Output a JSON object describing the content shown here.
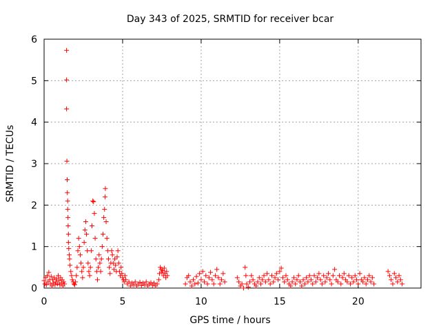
{
  "chart_data": {
    "type": "scatter",
    "title": "Day 343 of 2025, SRMTID for receiver bcar",
    "xlabel": "GPS time / hours",
    "ylabel": "SRMTID / TECUs",
    "xlim": [
      0,
      24
    ],
    "ylim": [
      0,
      6
    ],
    "xticks": [
      0,
      5,
      10,
      15,
      20
    ],
    "yticks": [
      0,
      1,
      2,
      3,
      4,
      5,
      6
    ],
    "grid": true,
    "legend": "none",
    "marker": "+",
    "color": "#ff0000",
    "series": [
      {
        "name": "SRMTID",
        "points": [
          [
            0.0,
            0.18
          ],
          [
            0.05,
            0.1
          ],
          [
            0.1,
            0.25
          ],
          [
            0.15,
            0.08
          ],
          [
            0.2,
            0.3
          ],
          [
            0.25,
            0.15
          ],
          [
            0.3,
            0.38
          ],
          [
            0.35,
            0.2
          ],
          [
            0.4,
            0.1
          ],
          [
            0.45,
            0.28
          ],
          [
            0.5,
            0.05
          ],
          [
            0.55,
            0.2
          ],
          [
            0.6,
            0.12
          ],
          [
            0.65,
            0.25
          ],
          [
            0.7,
            0.08
          ],
          [
            0.75,
            0.15
          ],
          [
            0.8,
            0.22
          ],
          [
            0.85,
            0.1
          ],
          [
            0.9,
            0.3
          ],
          [
            0.95,
            0.18
          ],
          [
            1.0,
            0.08
          ],
          [
            1.05,
            0.25
          ],
          [
            1.1,
            0.12
          ],
          [
            1.15,
            0.2
          ],
          [
            1.2,
            0.05
          ],
          [
            1.25,
            0.15
          ],
          [
            1.3,
            0.1
          ],
          [
            1.43,
            5.73
          ],
          [
            1.43,
            5.02
          ],
          [
            1.43,
            4.32
          ],
          [
            1.45,
            3.06
          ],
          [
            1.47,
            2.61
          ],
          [
            1.48,
            2.3
          ],
          [
            1.5,
            2.1
          ],
          [
            1.5,
            1.9
          ],
          [
            1.52,
            1.7
          ],
          [
            1.53,
            1.5
          ],
          [
            1.55,
            1.3
          ],
          [
            1.55,
            1.1
          ],
          [
            1.57,
            0.95
          ],
          [
            1.6,
            0.8
          ],
          [
            1.62,
            0.7
          ],
          [
            1.65,
            0.55
          ],
          [
            1.7,
            0.4
          ],
          [
            1.75,
            0.3
          ],
          [
            1.8,
            0.2
          ],
          [
            1.85,
            0.15
          ],
          [
            1.9,
            0.1
          ],
          [
            1.95,
            0.08
          ],
          [
            2.0,
            0.15
          ],
          [
            2.05,
            0.3
          ],
          [
            2.1,
            0.5
          ],
          [
            2.15,
            0.9
          ],
          [
            2.2,
            1.2
          ],
          [
            2.25,
            1.0
          ],
          [
            2.3,
            0.8
          ],
          [
            2.35,
            0.6
          ],
          [
            2.4,
            0.4
          ],
          [
            2.45,
            0.25
          ],
          [
            2.5,
            0.5
          ],
          [
            2.55,
            1.1
          ],
          [
            2.6,
            1.4
          ],
          [
            2.65,
            1.6
          ],
          [
            2.7,
            1.3
          ],
          [
            2.75,
            0.9
          ],
          [
            2.8,
            0.6
          ],
          [
            2.85,
            0.4
          ],
          [
            2.9,
            0.3
          ],
          [
            2.95,
            0.5
          ],
          [
            3.0,
            0.9
          ],
          [
            3.05,
            1.5
          ],
          [
            3.1,
            2.1
          ],
          [
            3.15,
            2.08
          ],
          [
            3.2,
            1.8
          ],
          [
            3.25,
            1.2
          ],
          [
            3.3,
            0.7
          ],
          [
            3.35,
            0.4
          ],
          [
            3.4,
            0.2
          ],
          [
            3.45,
            0.5
          ],
          [
            3.5,
            0.8
          ],
          [
            3.55,
            0.6
          ],
          [
            3.6,
            0.4
          ],
          [
            3.65,
            0.7
          ],
          [
            3.7,
            1.0
          ],
          [
            3.75,
            1.3
          ],
          [
            3.8,
            1.7
          ],
          [
            3.85,
            1.9
          ],
          [
            3.88,
            2.2
          ],
          [
            3.9,
            2.4
          ],
          [
            3.95,
            1.6
          ],
          [
            4.0,
            1.2
          ],
          [
            4.05,
            0.9
          ],
          [
            4.1,
            0.7
          ],
          [
            4.15,
            0.5
          ],
          [
            4.2,
            0.35
          ],
          [
            4.25,
            0.6
          ],
          [
            4.3,
            0.9
          ],
          [
            4.35,
            0.8
          ],
          [
            4.4,
            0.6
          ],
          [
            4.45,
            0.45
          ],
          [
            4.5,
            0.7
          ],
          [
            4.55,
            0.55
          ],
          [
            4.6,
            0.4
          ],
          [
            4.65,
            0.75
          ],
          [
            4.7,
            0.9
          ],
          [
            4.75,
            0.6
          ],
          [
            4.8,
            0.4
          ],
          [
            4.85,
            0.3
          ],
          [
            4.9,
            0.5
          ],
          [
            4.95,
            0.35
          ],
          [
            5.0,
            0.25
          ],
          [
            5.05,
            0.2
          ],
          [
            5.1,
            0.15
          ],
          [
            5.15,
            0.3
          ],
          [
            5.2,
            0.2
          ],
          [
            5.3,
            0.1
          ],
          [
            5.4,
            0.15
          ],
          [
            5.5,
            0.05
          ],
          [
            5.6,
            0.12
          ],
          [
            5.7,
            0.08
          ],
          [
            5.8,
            0.15
          ],
          [
            5.9,
            0.05
          ],
          [
            6.0,
            0.1
          ],
          [
            6.1,
            0.14
          ],
          [
            6.2,
            0.06
          ],
          [
            6.3,
            0.12
          ],
          [
            6.4,
            0.08
          ],
          [
            6.5,
            0.15
          ],
          [
            6.6,
            0.05
          ],
          [
            6.7,
            0.1
          ],
          [
            6.8,
            0.13
          ],
          [
            6.9,
            0.07
          ],
          [
            7.0,
            0.12
          ],
          [
            7.1,
            0.05
          ],
          [
            7.2,
            0.1
          ],
          [
            7.3,
            0.2
          ],
          [
            7.35,
            0.35
          ],
          [
            7.4,
            0.5
          ],
          [
            7.45,
            0.45
          ],
          [
            7.5,
            0.38
          ],
          [
            7.55,
            0.42
          ],
          [
            7.6,
            0.3
          ],
          [
            7.65,
            0.48
          ],
          [
            7.7,
            0.35
          ],
          [
            7.75,
            0.25
          ],
          [
            7.8,
            0.4
          ],
          [
            7.85,
            0.3
          ],
          [
            9.0,
            0.1
          ],
          [
            9.1,
            0.25
          ],
          [
            9.2,
            0.3
          ],
          [
            9.3,
            0.15
          ],
          [
            9.4,
            0.05
          ],
          [
            9.5,
            0.2
          ],
          [
            9.6,
            0.1
          ],
          [
            9.7,
            0.28
          ],
          [
            9.8,
            0.12
          ],
          [
            9.9,
            0.35
          ],
          [
            10.0,
            0.2
          ],
          [
            10.1,
            0.4
          ],
          [
            10.2,
            0.15
          ],
          [
            10.3,
            0.3
          ],
          [
            10.4,
            0.1
          ],
          [
            10.5,
            0.25
          ],
          [
            10.6,
            0.38
          ],
          [
            10.7,
            0.2
          ],
          [
            10.8,
            0.1
          ],
          [
            10.9,
            0.3
          ],
          [
            11.0,
            0.45
          ],
          [
            11.1,
            0.25
          ],
          [
            11.2,
            0.1
          ],
          [
            11.3,
            0.2
          ],
          [
            11.4,
            0.35
          ],
          [
            11.5,
            0.15
          ],
          [
            12.3,
            0.25
          ],
          [
            12.4,
            0.15
          ],
          [
            12.5,
            0.05
          ],
          [
            12.6,
            0.1
          ],
          [
            12.7,
            0.0
          ],
          [
            12.8,
            0.5
          ],
          [
            12.85,
            0.3
          ],
          [
            12.9,
            0.1
          ],
          [
            13.0,
            0.02
          ],
          [
            13.1,
            0.15
          ],
          [
            13.2,
            0.3
          ],
          [
            13.3,
            0.2
          ],
          [
            13.4,
            0.1
          ],
          [
            13.5,
            0.05
          ],
          [
            13.6,
            0.15
          ],
          [
            13.7,
            0.25
          ],
          [
            13.8,
            0.1
          ],
          [
            13.9,
            0.2
          ],
          [
            14.0,
            0.3
          ],
          [
            14.1,
            0.15
          ],
          [
            14.2,
            0.35
          ],
          [
            14.3,
            0.2
          ],
          [
            14.4,
            0.1
          ],
          [
            14.5,
            0.3
          ],
          [
            14.6,
            0.15
          ],
          [
            14.7,
            0.25
          ],
          [
            14.8,
            0.35
          ],
          [
            14.9,
            0.2
          ],
          [
            15.0,
            0.4
          ],
          [
            15.1,
            0.48
          ],
          [
            15.2,
            0.25
          ],
          [
            15.3,
            0.15
          ],
          [
            15.4,
            0.3
          ],
          [
            15.5,
            0.2
          ],
          [
            15.6,
            0.1
          ],
          [
            15.7,
            0.05
          ],
          [
            15.8,
            0.15
          ],
          [
            15.9,
            0.25
          ],
          [
            16.0,
            0.1
          ],
          [
            16.1,
            0.2
          ],
          [
            16.2,
            0.3
          ],
          [
            16.3,
            0.15
          ],
          [
            16.4,
            0.05
          ],
          [
            16.5,
            0.2
          ],
          [
            16.6,
            0.1
          ],
          [
            16.7,
            0.25
          ],
          [
            16.8,
            0.15
          ],
          [
            16.9,
            0.3
          ],
          [
            17.0,
            0.2
          ],
          [
            17.1,
            0.1
          ],
          [
            17.2,
            0.3
          ],
          [
            17.3,
            0.15
          ],
          [
            17.4,
            0.25
          ],
          [
            17.5,
            0.35
          ],
          [
            17.6,
            0.2
          ],
          [
            17.7,
            0.1
          ],
          [
            17.8,
            0.3
          ],
          [
            17.9,
            0.15
          ],
          [
            18.0,
            0.25
          ],
          [
            18.1,
            0.35
          ],
          [
            18.2,
            0.2
          ],
          [
            18.3,
            0.1
          ],
          [
            18.4,
            0.3
          ],
          [
            18.5,
            0.45
          ],
          [
            18.6,
            0.2
          ],
          [
            18.7,
            0.15
          ],
          [
            18.8,
            0.3
          ],
          [
            18.9,
            0.1
          ],
          [
            19.0,
            0.25
          ],
          [
            19.1,
            0.35
          ],
          [
            19.2,
            0.2
          ],
          [
            19.3,
            0.15
          ],
          [
            19.4,
            0.3
          ],
          [
            19.5,
            0.1
          ],
          [
            19.6,
            0.25
          ],
          [
            19.7,
            0.15
          ],
          [
            19.8,
            0.3
          ],
          [
            19.9,
            0.2
          ],
          [
            20.0,
            0.1
          ],
          [
            20.1,
            0.35
          ],
          [
            20.2,
            0.2
          ],
          [
            20.3,
            0.15
          ],
          [
            20.4,
            0.25
          ],
          [
            20.5,
            0.1
          ],
          [
            20.6,
            0.2
          ],
          [
            20.7,
            0.3
          ],
          [
            20.8,
            0.15
          ],
          [
            20.9,
            0.25
          ],
          [
            21.0,
            0.1
          ],
          [
            21.9,
            0.4
          ],
          [
            22.0,
            0.3
          ],
          [
            22.1,
            0.2
          ],
          [
            22.2,
            0.1
          ],
          [
            22.3,
            0.35
          ],
          [
            22.4,
            0.25
          ],
          [
            22.5,
            0.15
          ],
          [
            22.6,
            0.3
          ],
          [
            22.7,
            0.2
          ],
          [
            22.8,
            0.1
          ]
        ]
      }
    ]
  }
}
